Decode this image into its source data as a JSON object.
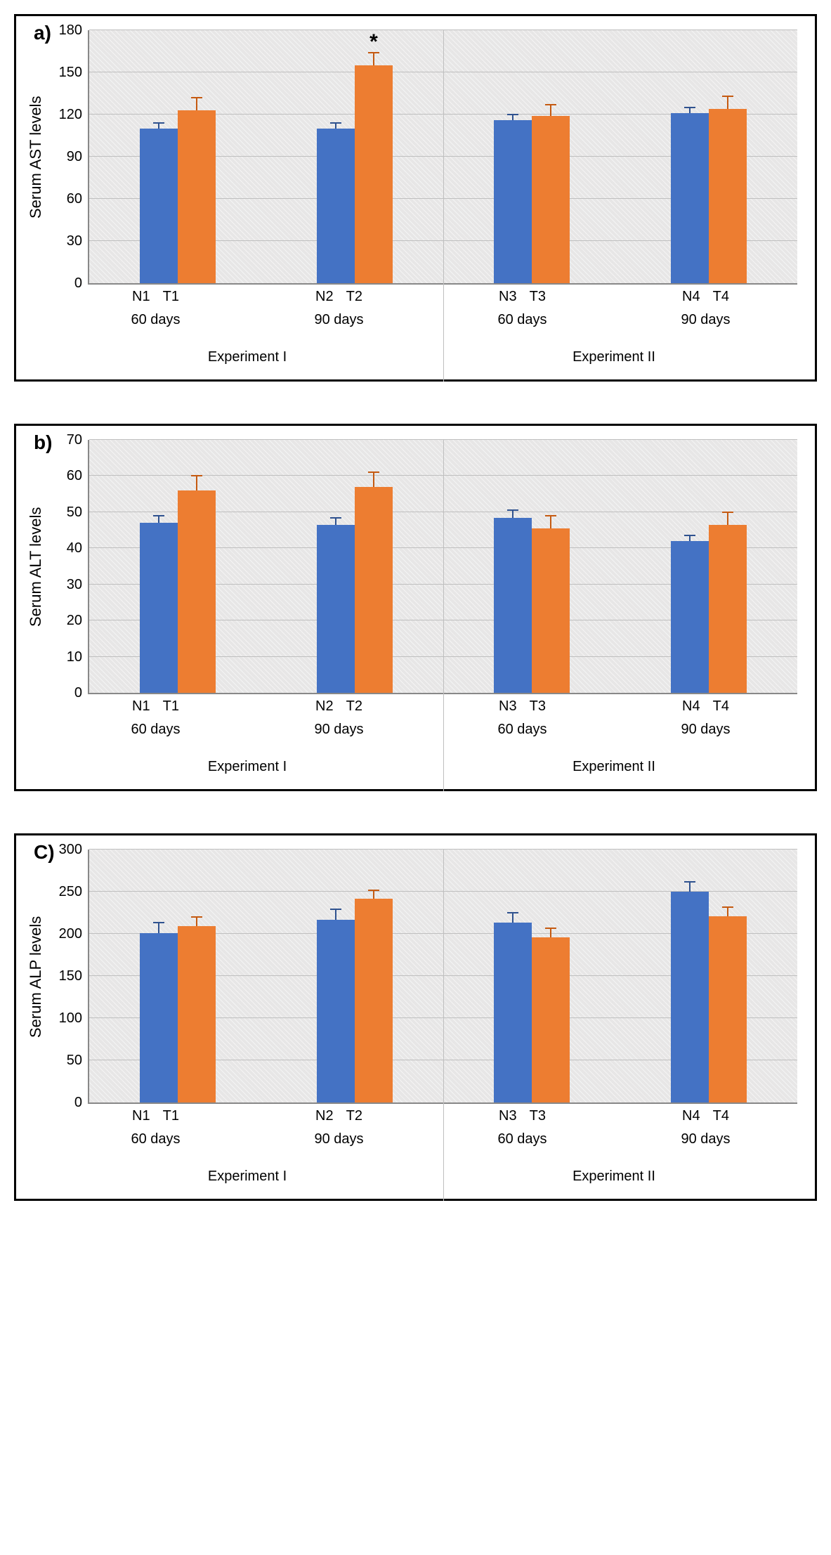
{
  "colors": {
    "bar_n": "#4472c4",
    "bar_t": "#ed7d31",
    "plot_bg": "#e7e6e6",
    "gridline": "#bfbfbf",
    "axis": "#888888",
    "panel_border": "#000000",
    "err_n": "#2f528f",
    "err_t": "#c55a11",
    "text": "#000000"
  },
  "font_sizes": {
    "panel_label": 28,
    "axis_tick": 20,
    "axis_label": 22,
    "category": 20,
    "significance": 30
  },
  "panels": [
    {
      "id": "a",
      "label": "a)",
      "y_label": "Serum AST levels",
      "y_min": 0,
      "y_max": 180,
      "y_step": 30,
      "y_ticks": [
        0,
        30,
        60,
        90,
        120,
        150,
        180
      ],
      "experiments": [
        {
          "name": "Experiment I",
          "groups": [
            {
              "day_label": "60 days",
              "pairs": [
                {
                  "label": "N1",
                  "value": 110,
                  "error": 4,
                  "color": "n"
                },
                {
                  "label": "T1",
                  "value": 123,
                  "error": 9,
                  "color": "t"
                }
              ]
            },
            {
              "day_label": "90 days",
              "pairs": [
                {
                  "label": "N2",
                  "value": 110,
                  "error": 4,
                  "color": "n"
                },
                {
                  "label": "T2",
                  "value": 155,
                  "error": 9,
                  "color": "t",
                  "sig": "*"
                }
              ]
            }
          ]
        },
        {
          "name": "Experiment II",
          "groups": [
            {
              "day_label": "60 days",
              "pairs": [
                {
                  "label": "N3",
                  "value": 116,
                  "error": 4,
                  "color": "n"
                },
                {
                  "label": "T3",
                  "value": 119,
                  "error": 8,
                  "color": "t"
                }
              ]
            },
            {
              "day_label": "90 days",
              "pairs": [
                {
                  "label": "N4",
                  "value": 121,
                  "error": 4,
                  "color": "n"
                },
                {
                  "label": "T4",
                  "value": 124,
                  "error": 9,
                  "color": "t"
                }
              ]
            }
          ]
        }
      ]
    },
    {
      "id": "b",
      "label": "b)",
      "y_label": "Serum ALT levels",
      "y_min": 0,
      "y_max": 70,
      "y_step": 10,
      "y_ticks": [
        0,
        10,
        20,
        30,
        40,
        50,
        60,
        70
      ],
      "experiments": [
        {
          "name": "Experiment I",
          "groups": [
            {
              "day_label": "60 days",
              "pairs": [
                {
                  "label": "N1",
                  "value": 47,
                  "error": 2,
                  "color": "n"
                },
                {
                  "label": "T1",
                  "value": 56,
                  "error": 4,
                  "color": "t"
                }
              ]
            },
            {
              "day_label": "90 days",
              "pairs": [
                {
                  "label": "N2",
                  "value": 46.5,
                  "error": 2,
                  "color": "n"
                },
                {
                  "label": "T2",
                  "value": 57,
                  "error": 4,
                  "color": "t"
                }
              ]
            }
          ]
        },
        {
          "name": "Experiment II",
          "groups": [
            {
              "day_label": "60 days",
              "pairs": [
                {
                  "label": "N3",
                  "value": 48.5,
                  "error": 2,
                  "color": "n"
                },
                {
                  "label": "T3",
                  "value": 45.5,
                  "error": 3.5,
                  "color": "t"
                }
              ]
            },
            {
              "day_label": "90 days",
              "pairs": [
                {
                  "label": "N4",
                  "value": 42,
                  "error": 1.5,
                  "color": "n"
                },
                {
                  "label": "T4",
                  "value": 46.5,
                  "error": 3.5,
                  "color": "t"
                }
              ]
            }
          ]
        }
      ]
    },
    {
      "id": "c",
      "label": "C)",
      "y_label": "Serum ALP levels",
      "y_min": 0,
      "y_max": 300,
      "y_step": 50,
      "y_ticks": [
        0,
        50,
        100,
        150,
        200,
        250,
        300
      ],
      "experiments": [
        {
          "name": "Experiment I",
          "groups": [
            {
              "day_label": "60 days",
              "pairs": [
                {
                  "label": "N1",
                  "value": 201,
                  "error": 12,
                  "color": "n"
                },
                {
                  "label": "T1",
                  "value": 209,
                  "error": 11,
                  "color": "t"
                }
              ]
            },
            {
              "day_label": "90 days",
              "pairs": [
                {
                  "label": "N2",
                  "value": 217,
                  "error": 12,
                  "color": "n"
                },
                {
                  "label": "T2",
                  "value": 242,
                  "error": 10,
                  "color": "t"
                }
              ]
            }
          ]
        },
        {
          "name": "Experiment II",
          "groups": [
            {
              "day_label": "60 days",
              "pairs": [
                {
                  "label": "N3",
                  "value": 213,
                  "error": 12,
                  "color": "n"
                },
                {
                  "label": "T3",
                  "value": 196,
                  "error": 11,
                  "color": "t"
                }
              ]
            },
            {
              "day_label": "90 days",
              "pairs": [
                {
                  "label": "N4",
                  "value": 250,
                  "error": 12,
                  "color": "n"
                },
                {
                  "label": "T4",
                  "value": 221,
                  "error": 11,
                  "color": "t"
                }
              ]
            }
          ]
        }
      ]
    }
  ]
}
